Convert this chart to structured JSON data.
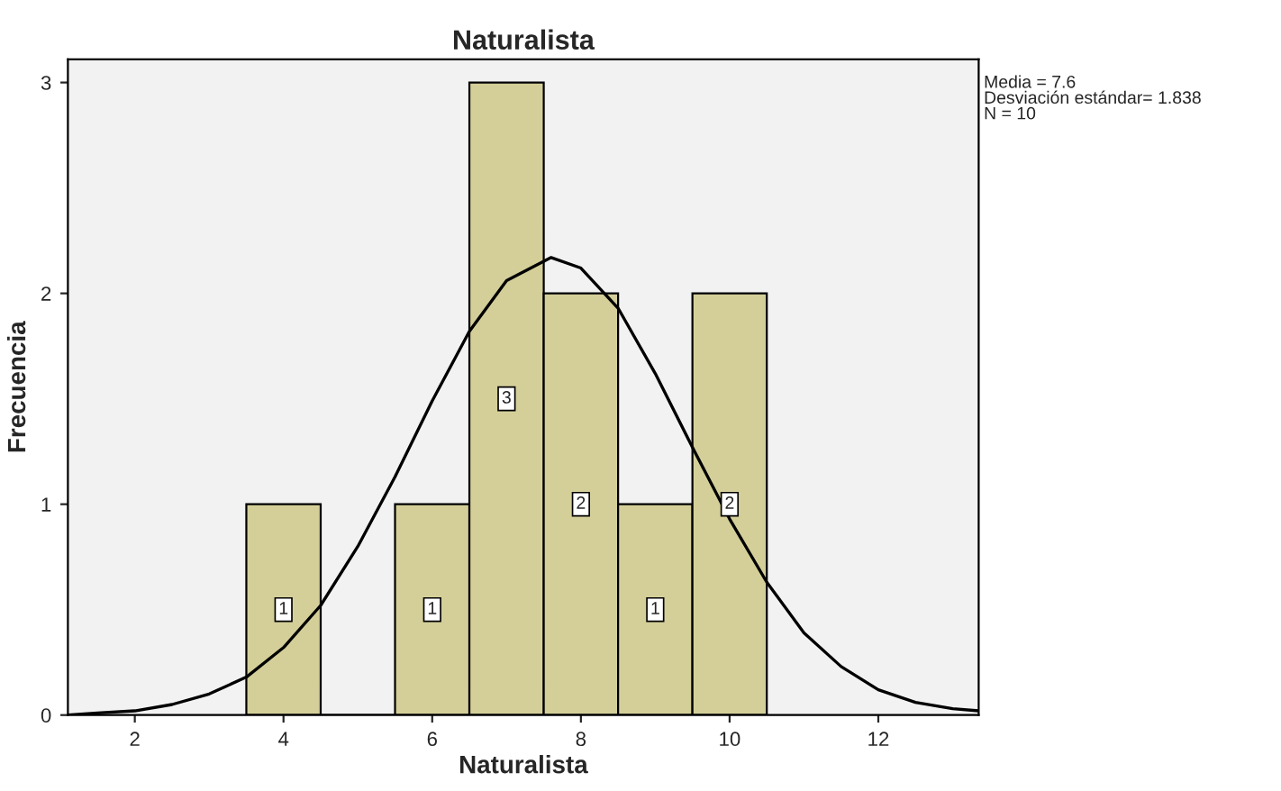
{
  "chart_data": {
    "type": "histogram",
    "title": "Naturalista",
    "xlabel": "Naturalista",
    "ylabel": "Frecuencia",
    "annotations": [
      "Media = 7.6\nDesviación estándar= 1.838\nN = 10"
    ],
    "xlim": [
      1.1,
      13.35
    ],
    "ylim": [
      0,
      3.11
    ],
    "xticks": [
      2,
      4,
      6,
      8,
      10,
      12
    ],
    "yticks": [
      0,
      1,
      2,
      3
    ],
    "series": [
      {
        "color": "#d4cf99",
        "bins": [
          3.5,
          4.5,
          5.5,
          6.5,
          7.5,
          8.5,
          9.5,
          10.5
        ],
        "values": [
          1,
          0,
          1,
          3,
          2,
          1,
          2
        ],
        "value_labels": [
          "1",
          null,
          "1",
          "3",
          "2",
          "1",
          "2"
        ]
      },
      {
        "type": "line",
        "color": "#000000",
        "x": [
          1.1,
          1.5,
          2,
          2.5,
          3,
          3.5,
          4,
          4.5,
          5,
          5.5,
          6,
          6.5,
          7,
          7.6,
          8,
          8.5,
          9,
          9.5,
          10,
          10.5,
          11,
          11.5,
          12,
          12.5,
          13,
          13.35
        ],
        "values": [
          0,
          0.01,
          0.02,
          0.05,
          0.1,
          0.18,
          0.32,
          0.52,
          0.8,
          1.13,
          1.49,
          1.82,
          2.06,
          2.17,
          2.12,
          1.93,
          1.62,
          1.27,
          0.93,
          0.63,
          0.39,
          0.23,
          0.12,
          0.06,
          0.03,
          0.02
        ]
      }
    ]
  }
}
